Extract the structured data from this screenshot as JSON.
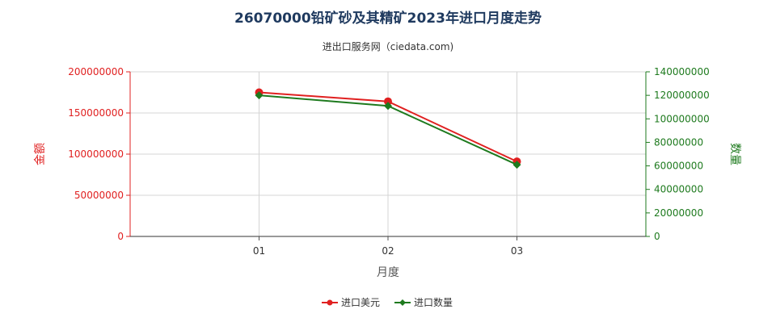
{
  "chart_data": {
    "type": "line",
    "title": "26070000铅矿砂及其精矿2023年进口月度走势",
    "subtitle": "进出口服务网（ciedata.com)",
    "xlabel": "月度",
    "ylabel_left": "金额",
    "ylabel_right": "数量",
    "categories": [
      "01",
      "02",
      "03"
    ],
    "y_left": {
      "min": 0,
      "max": 200000000,
      "ticks": [
        "0",
        "50000000",
        "100000000",
        "150000000",
        "200000000"
      ],
      "tick_values": [
        0,
        50000000,
        100000000,
        150000000,
        200000000
      ]
    },
    "y_right": {
      "min": 0,
      "max": 140000000,
      "ticks": [
        "0",
        "20000000",
        "40000000",
        "60000000",
        "80000000",
        "100000000",
        "120000000",
        "140000000"
      ],
      "tick_values": [
        0,
        20000000,
        40000000,
        60000000,
        80000000,
        100000000,
        120000000,
        140000000
      ]
    },
    "series": [
      {
        "name": "进口美元",
        "axis": "left",
        "color": "#e02020",
        "values": [
          175000000,
          164000000,
          91000000
        ]
      },
      {
        "name": "进口数量",
        "axis": "right",
        "color": "#1e7a1e",
        "values": [
          120000000,
          111000000,
          61000000
        ]
      }
    ],
    "grid": true,
    "legend_position": "bottom-center"
  }
}
